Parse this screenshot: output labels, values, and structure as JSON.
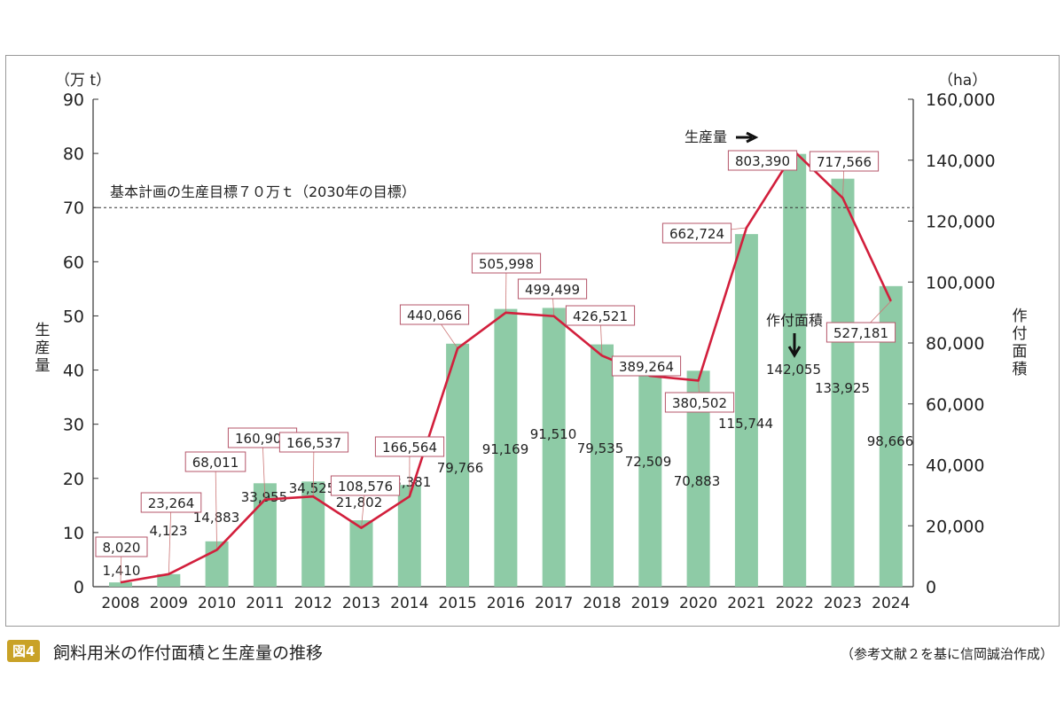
{
  "chart_data": {
    "type": "bar+line",
    "categories": [
      "2008",
      "2009",
      "2010",
      "2011",
      "2012",
      "2013",
      "2014",
      "2015",
      "2016",
      "2017",
      "2018",
      "2019",
      "2020",
      "2021",
      "2022",
      "2023",
      "2024"
    ],
    "series": [
      {
        "name": "作付面積",
        "type": "bar",
        "axis": "right",
        "unit": "ha",
        "values": [
          1410,
          4123,
          14883,
          33955,
          34525,
          21802,
          33381,
          79766,
          91169,
          91510,
          79535,
          72509,
          70883,
          115744,
          142055,
          133925,
          98666
        ],
        "labels": [
          "1,410",
          "4,123",
          "14,883",
          "33,955",
          "34,525",
          "21,802",
          "33,381",
          "79,766",
          "91,169",
          "91,510",
          "79,535",
          "72,509",
          "70,883",
          "115,744",
          "142,055",
          "133,925",
          "98,666"
        ],
        "color": "#8ecba6"
      },
      {
        "name": "生産量",
        "type": "line",
        "axis": "left",
        "unit": "t",
        "values": [
          8020,
          23264,
          68011,
          160900,
          166537,
          108576,
          166564,
          440066,
          505998,
          499499,
          426521,
          389264,
          380502,
          662724,
          803390,
          717566,
          527181
        ],
        "labels": [
          "8,020",
          "23,264",
          "68,011",
          "160,900",
          "166,537",
          "108,576",
          "166,564",
          "440,066",
          "505,998",
          "499,499",
          "426,521",
          "389,264",
          "380,502",
          "662,724",
          "803,390",
          "717,566",
          "527,181"
        ],
        "color": "#d21f3c"
      }
    ],
    "left_axis": {
      "label": "生産量",
      "unit": "（万 t）",
      "range": [
        0,
        90
      ],
      "ticks": [
        "0",
        "10",
        "20",
        "30",
        "40",
        "50",
        "60",
        "70",
        "80",
        "90"
      ]
    },
    "right_axis": {
      "label": "作付面積",
      "unit": "（ha）",
      "range": [
        0,
        160000
      ],
      "ticks": [
        "0",
        "20,000",
        "40,000",
        "60,000",
        "80,000",
        "100,000",
        "120,000",
        "140,000",
        "160,000"
      ]
    },
    "reference_line": {
      "value": 70,
      "label": "基本計画の生産目標７０万ｔ（2030年の目標）"
    },
    "annotations": {
      "production": "生産量",
      "area": "作付面積"
    }
  },
  "caption": {
    "badge": "図4",
    "title": "飼料用米の作付面積と生産量の推移",
    "source": "（参考文献２を基に信岡誠治作成）"
  }
}
